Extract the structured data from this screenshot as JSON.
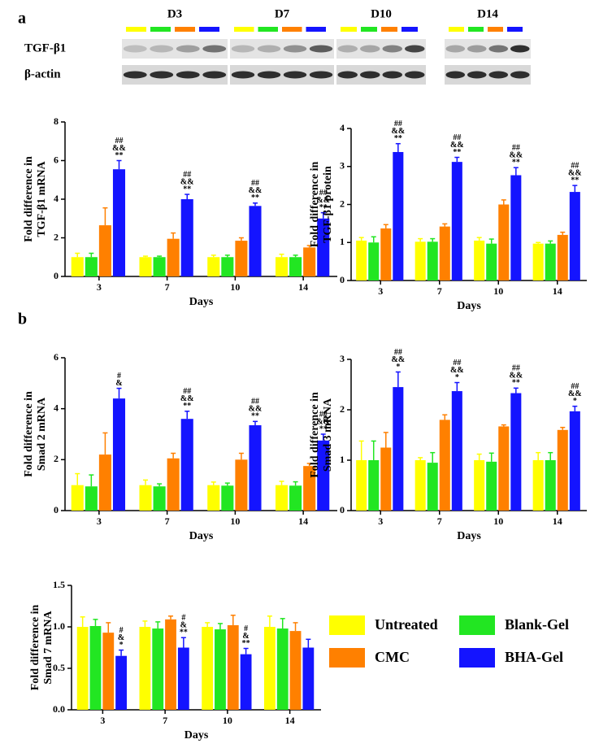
{
  "panels": [
    "a",
    "b"
  ],
  "blot": {
    "columns": [
      "D3",
      "D7",
      "D10",
      "D14"
    ],
    "rows": [
      "TGF-β1",
      "β-actin"
    ]
  },
  "chart_data": [
    {
      "type": "bar",
      "ylabel": [
        "Fold difference in",
        "TGF-β1 mRNA"
      ],
      "xlabel": "Days",
      "categories": [
        "3",
        "7",
        "10",
        "14"
      ],
      "ylim": [
        0,
        8
      ],
      "yticks": [
        0,
        2,
        4,
        6,
        8
      ],
      "series": [
        {
          "color": "#ffff00",
          "values": [
            1.0,
            1.0,
            1.0,
            1.0
          ],
          "errors": [
            0.2,
            0.05,
            0.1,
            0.15
          ]
        },
        {
          "color": "#22e622",
          "values": [
            1.0,
            1.0,
            1.0,
            1.0
          ],
          "errors": [
            0.2,
            0.05,
            0.1,
            0.1
          ]
        },
        {
          "color": "#ff8000",
          "values": [
            2.65,
            1.95,
            1.85,
            1.5
          ],
          "errors": [
            0.9,
            0.3,
            0.15,
            0.1
          ]
        },
        {
          "color": "#1414ff",
          "values": [
            5.55,
            4.0,
            3.65,
            3.0
          ],
          "errors": [
            0.45,
            0.25,
            0.15,
            0.3
          ],
          "annotations": [
            [
              "##",
              "&&",
              "**"
            ],
            [
              "##",
              "&&",
              "**"
            ],
            [
              "##",
              "&&",
              "**"
            ],
            [
              "##",
              "&&",
              "**"
            ]
          ]
        }
      ]
    },
    {
      "type": "bar",
      "ylabel": [
        "Fold difference in",
        "TGF-β1 protein"
      ],
      "xlabel": "Days",
      "categories": [
        "3",
        "7",
        "10",
        "14"
      ],
      "ylim": [
        0,
        4
      ],
      "yticks": [
        0,
        1,
        2,
        3,
        4
      ],
      "series": [
        {
          "color": "#ffff00",
          "values": [
            1.05,
            1.02,
            1.05,
            0.97
          ],
          "errors": [
            0.08,
            0.08,
            0.08,
            0.03
          ]
        },
        {
          "color": "#22e622",
          "values": [
            1.0,
            1.02,
            0.97,
            0.97
          ],
          "errors": [
            0.15,
            0.08,
            0.12,
            0.07
          ]
        },
        {
          "color": "#ff8000",
          "values": [
            1.37,
            1.42,
            2.0,
            1.2
          ],
          "errors": [
            0.1,
            0.07,
            0.12,
            0.07
          ]
        },
        {
          "color": "#1414ff",
          "values": [
            3.38,
            3.12,
            2.77,
            2.33
          ],
          "errors": [
            0.22,
            0.12,
            0.2,
            0.17
          ],
          "annotations": [
            [
              "##",
              "&&",
              "**"
            ],
            [
              "##",
              "&&",
              "**"
            ],
            [
              "##",
              "&&",
              "**"
            ],
            [
              "##",
              "&&",
              "**"
            ]
          ]
        }
      ]
    },
    {
      "type": "bar",
      "ylabel": [
        "Fold difference in",
        "Smad 2 mRNA"
      ],
      "xlabel": "Days",
      "categories": [
        "3",
        "7",
        "10",
        "14"
      ],
      "ylim": [
        0,
        6
      ],
      "yticks": [
        0,
        2,
        4,
        6
      ],
      "series": [
        {
          "color": "#ffff00",
          "values": [
            1.0,
            1.0,
            1.0,
            1.0
          ],
          "errors": [
            0.45,
            0.2,
            0.12,
            0.15
          ]
        },
        {
          "color": "#22e622",
          "values": [
            0.95,
            0.95,
            0.98,
            0.98
          ],
          "errors": [
            0.45,
            0.1,
            0.1,
            0.15
          ]
        },
        {
          "color": "#ff8000",
          "values": [
            2.2,
            2.05,
            2.0,
            1.75
          ],
          "errors": [
            0.85,
            0.2,
            0.25,
            0.1
          ]
        },
        {
          "color": "#1414ff",
          "values": [
            4.4,
            3.6,
            3.35,
            2.75
          ],
          "errors": [
            0.4,
            0.3,
            0.15,
            0.25
          ],
          "annotations": [
            [
              "#",
              "&"
            ],
            [
              "##",
              "&&",
              "**"
            ],
            [
              "##",
              "&&",
              "**"
            ],
            [
              "##",
              "&&",
              "**"
            ]
          ]
        }
      ]
    },
    {
      "type": "bar",
      "ylabel": [
        "Fold difference in",
        "Smad 3 mRNA"
      ],
      "xlabel": "Days",
      "categories": [
        "3",
        "7",
        "10",
        "14"
      ],
      "ylim": [
        0,
        3
      ],
      "yticks": [
        0,
        1,
        2,
        3
      ],
      "series": [
        {
          "color": "#ffff00",
          "values": [
            1.0,
            1.0,
            1.0,
            1.0
          ],
          "errors": [
            0.38,
            0.05,
            0.12,
            0.15
          ]
        },
        {
          "color": "#22e622",
          "values": [
            1.0,
            0.95,
            0.97,
            1.0
          ],
          "errors": [
            0.38,
            0.2,
            0.17,
            0.15
          ]
        },
        {
          "color": "#ff8000",
          "values": [
            1.25,
            1.8,
            1.67,
            1.6
          ],
          "errors": [
            0.3,
            0.1,
            0.03,
            0.05
          ]
        },
        {
          "color": "#1414ff",
          "values": [
            2.45,
            2.37,
            2.33,
            1.97
          ],
          "errors": [
            0.3,
            0.17,
            0.1,
            0.1
          ],
          "annotations": [
            [
              "##",
              "&&",
              "*"
            ],
            [
              "##",
              "&&",
              "*"
            ],
            [
              "##",
              "&&",
              "**"
            ],
            [
              "##",
              "&&",
              "*"
            ]
          ]
        }
      ]
    },
    {
      "type": "bar",
      "ylabel": [
        "Fold difference in",
        "Smad 7 mRNA"
      ],
      "xlabel": "Days",
      "categories": [
        "3",
        "7",
        "10",
        "14"
      ],
      "ylim": [
        0,
        1.5
      ],
      "yticks": [
        {
          "value": 0,
          "label": "0.0"
        },
        0.5,
        {
          "value": 1,
          "label": "1.0"
        },
        1.5
      ],
      "legend": "right",
      "series": [
        {
          "name": "Untreated",
          "color": "#ffff00",
          "values": [
            1.0,
            1.0,
            1.0,
            1.0
          ],
          "errors": [
            0.12,
            0.07,
            0.05,
            0.13
          ]
        },
        {
          "name": "Blank-Gel",
          "color": "#22e622",
          "values": [
            1.01,
            0.98,
            0.97,
            0.98
          ],
          "errors": [
            0.08,
            0.08,
            0.07,
            0.12
          ]
        },
        {
          "name": "CMC",
          "color": "#ff8000",
          "values": [
            0.93,
            1.09,
            1.02,
            0.95
          ],
          "errors": [
            0.12,
            0.04,
            0.12,
            0.1
          ]
        },
        {
          "name": "BHA-Gel",
          "color": "#1414ff",
          "values": [
            0.65,
            0.75,
            0.67,
            0.75
          ],
          "errors": [
            0.07,
            0.12,
            0.07,
            0.1
          ],
          "annotations": [
            [
              "#",
              "&",
              "*"
            ],
            [
              "#",
              "&",
              "**"
            ],
            [
              "#",
              "&",
              "**"
            ],
            []
          ]
        }
      ]
    }
  ]
}
